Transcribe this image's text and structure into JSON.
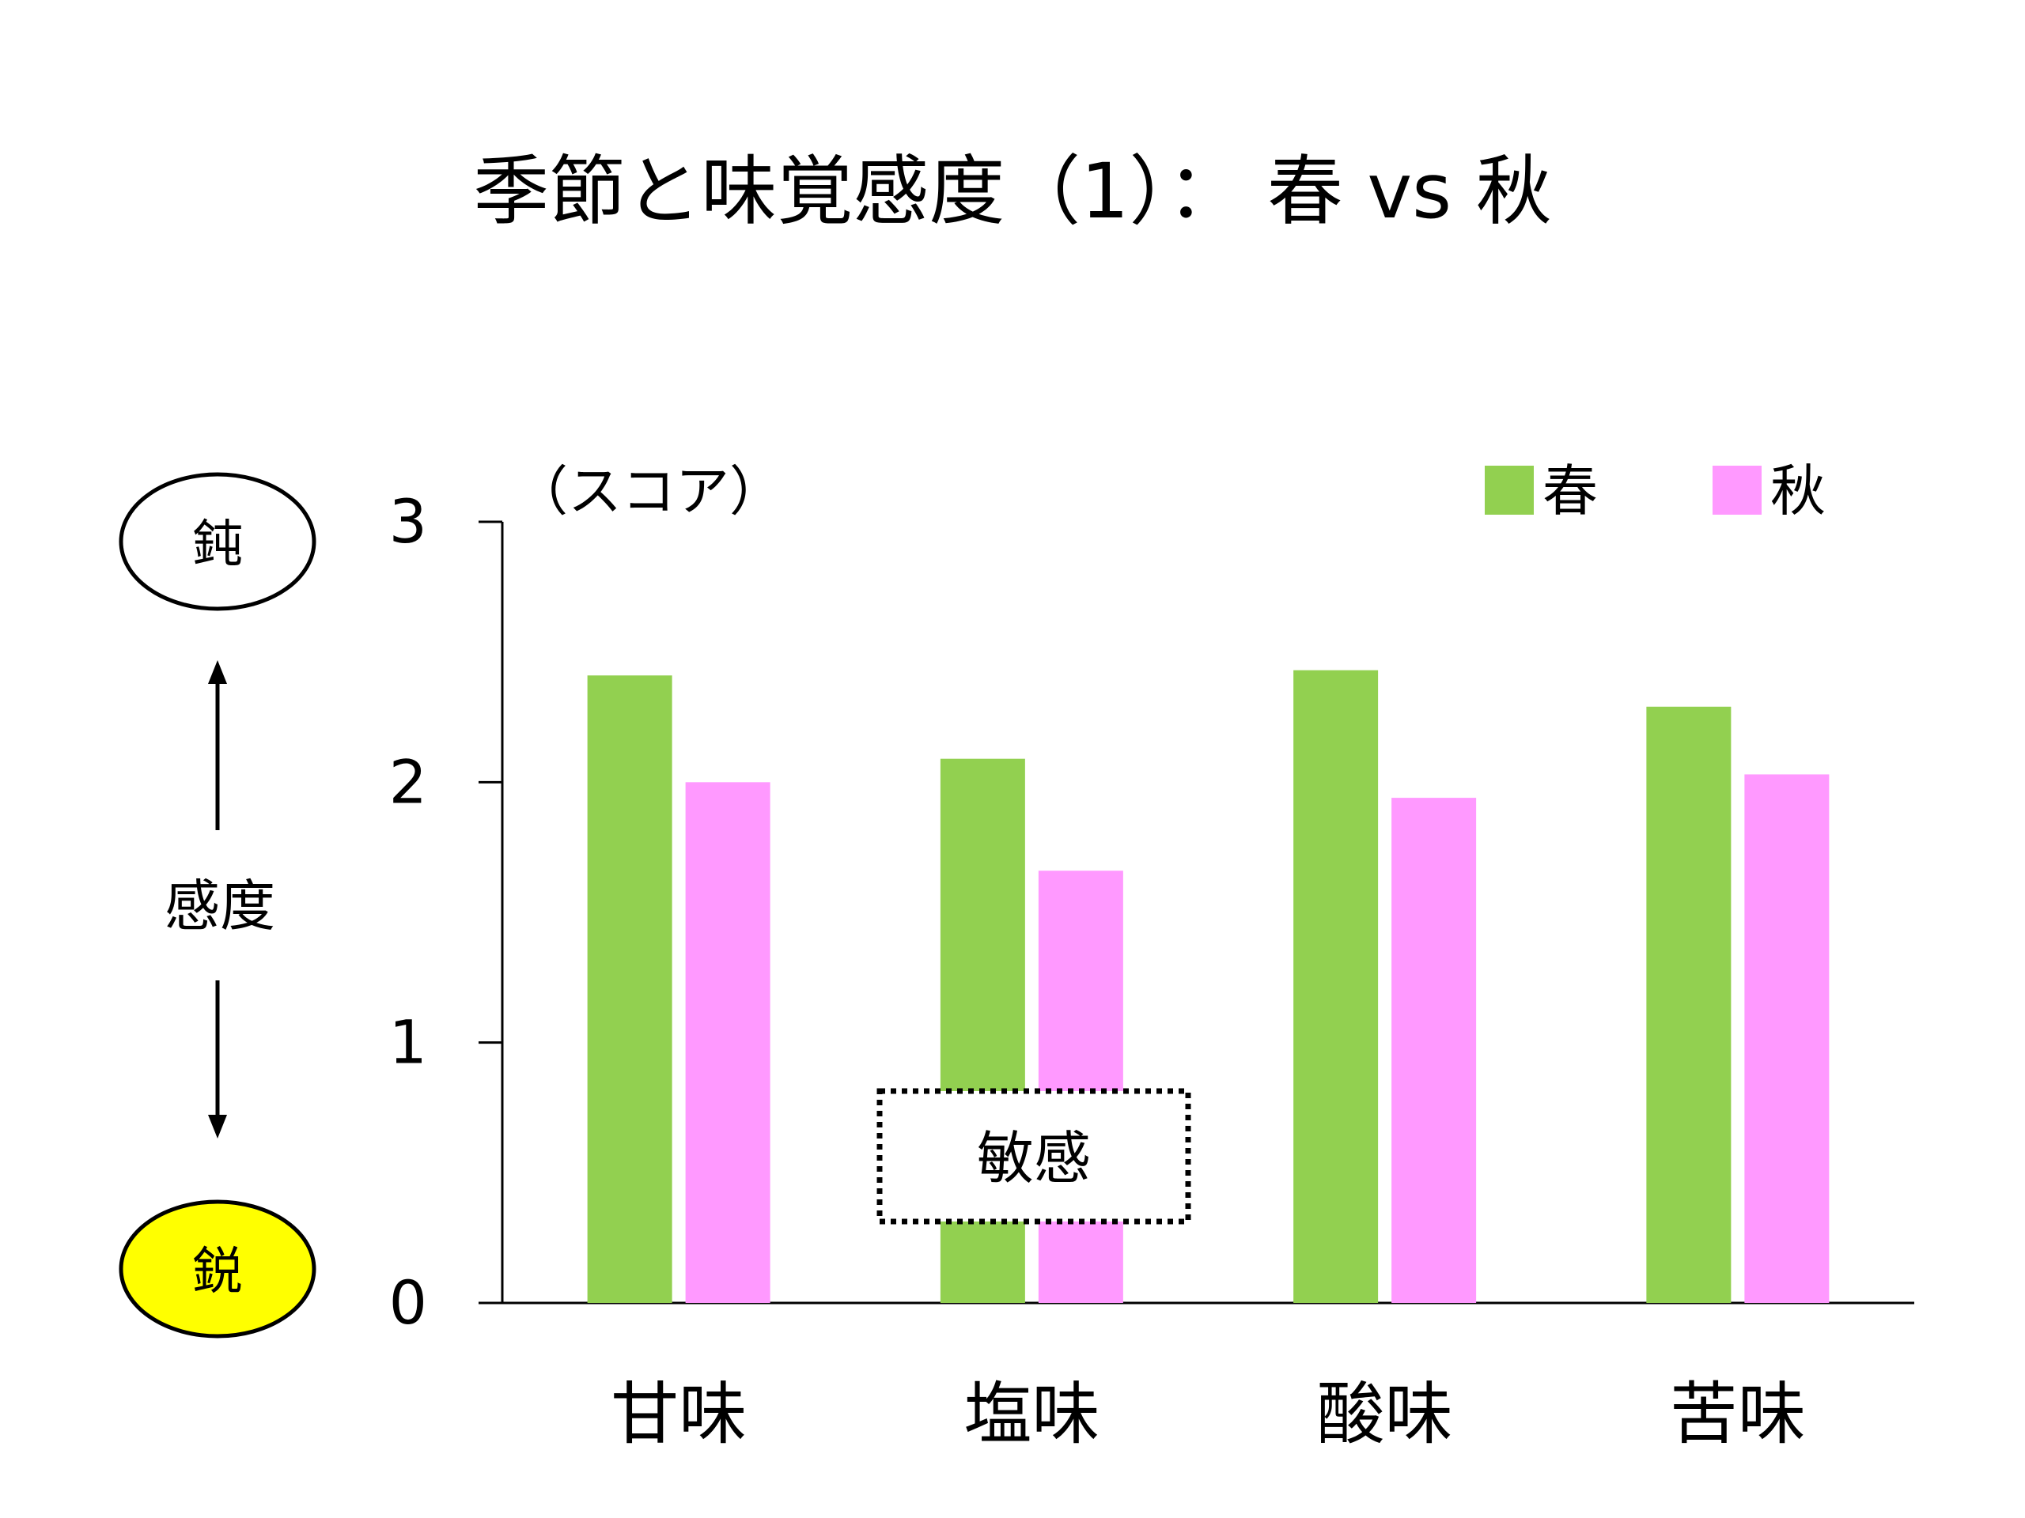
{
  "slide": {
    "title": "季節と味覚感度（1）： 春 vs 秋"
  },
  "sensitivity_scale": {
    "dull_label": "鈍",
    "sharp_label": "鋭",
    "axis_label": "感度"
  },
  "note": {
    "label": "敏感"
  },
  "colors": {
    "spring": "#92d050",
    "autumn": "#ff99ff",
    "sharp_oval": "#ffff00"
  },
  "chart_data": {
    "type": "bar",
    "ylabel": "（スコア）",
    "ylim": [
      0,
      3
    ],
    "yticks": [
      "0",
      "1",
      "2",
      "3"
    ],
    "categories": [
      "甘味",
      "塩味",
      "酸味",
      "苦味"
    ],
    "legend_placement": "top-right",
    "grid": false,
    "series": [
      {
        "name": "春",
        "values": [
          2.41,
          2.09,
          2.43,
          2.29
        ]
      },
      {
        "name": "秋",
        "values": [
          2.0,
          1.66,
          1.94,
          2.03
        ]
      }
    ]
  }
}
